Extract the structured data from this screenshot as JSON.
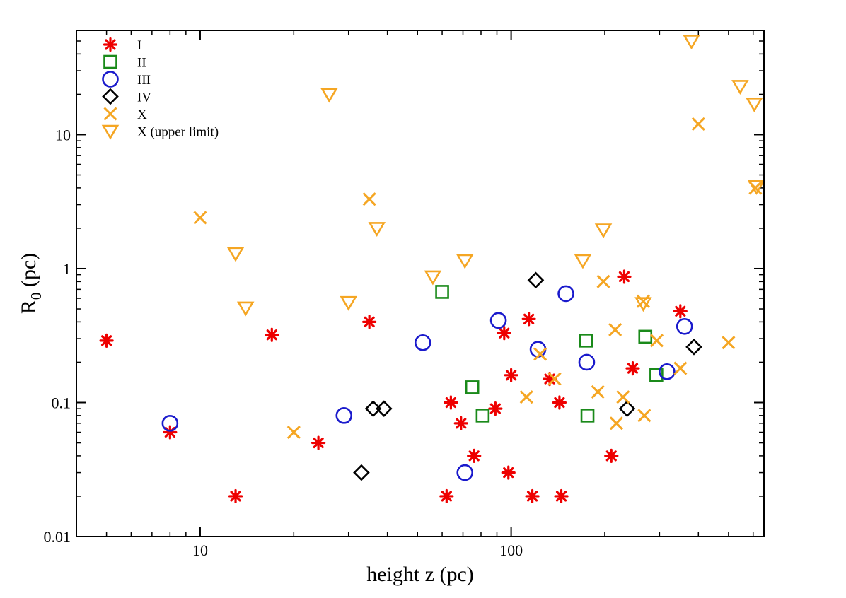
{
  "chart_data": {
    "type": "scatter",
    "xscale": "log",
    "yscale": "log",
    "xlim": [
      4,
      650
    ],
    "ylim": [
      0.01,
      60
    ],
    "xlabel": "height z (pc)",
    "ylabel_main": "R",
    "ylabel_sub": "0",
    "ylabel_unit": " (pc)",
    "legend_position": "top-left",
    "x_ticks": [
      {
        "value": 10,
        "label": "10"
      },
      {
        "value": 100,
        "label": "100"
      }
    ],
    "y_ticks": [
      {
        "value": 0.01,
        "label": "0.01"
      },
      {
        "value": 0.1,
        "label": "0.1"
      },
      {
        "value": 1,
        "label": "1"
      },
      {
        "value": 10,
        "label": "10"
      }
    ],
    "series": [
      {
        "name": "I",
        "marker": "asterisk",
        "color": "#ee0000",
        "points": [
          [
            5,
            0.29
          ],
          [
            8,
            0.06
          ],
          [
            13,
            0.02
          ],
          [
            17,
            0.32
          ],
          [
            24,
            0.05
          ],
          [
            35,
            0.4
          ],
          [
            62,
            0.02
          ],
          [
            64,
            0.1
          ],
          [
            69,
            0.07
          ],
          [
            76,
            0.04
          ],
          [
            89,
            0.09
          ],
          [
            95,
            0.33
          ],
          [
            98,
            0.03
          ],
          [
            100,
            0.16
          ],
          [
            114,
            0.42
          ],
          [
            117,
            0.02
          ],
          [
            133,
            0.15
          ],
          [
            143,
            0.1
          ],
          [
            145,
            0.02
          ],
          [
            210,
            0.04
          ],
          [
            231,
            0.87
          ],
          [
            246,
            0.18
          ],
          [
            350,
            0.48
          ]
        ]
      },
      {
        "name": "II",
        "marker": "square",
        "color": "#1a8a1a",
        "points": [
          [
            60,
            0.67
          ],
          [
            75,
            0.13
          ],
          [
            81,
            0.08
          ],
          [
            174,
            0.29
          ],
          [
            176,
            0.08
          ],
          [
            270,
            0.31
          ],
          [
            293,
            0.16
          ]
        ]
      },
      {
        "name": "III",
        "marker": "circle",
        "color": "#1a1acc",
        "points": [
          [
            8,
            0.07
          ],
          [
            29,
            0.08
          ],
          [
            52,
            0.28
          ],
          [
            71,
            0.03
          ],
          [
            91,
            0.41
          ],
          [
            122,
            0.25
          ],
          [
            150,
            0.65
          ],
          [
            175,
            0.2
          ],
          [
            317,
            0.17
          ],
          [
            361,
            0.37
          ]
        ]
      },
      {
        "name": "IV",
        "marker": "diamond",
        "color": "#000000",
        "points": [
          [
            33,
            0.03
          ],
          [
            36,
            0.09
          ],
          [
            39,
            0.09
          ],
          [
            120,
            0.82
          ],
          [
            236,
            0.09
          ],
          [
            387,
            0.26
          ]
        ]
      },
      {
        "name": "X",
        "marker": "x",
        "color": "#f5a623",
        "points": [
          [
            10,
            2.4
          ],
          [
            20,
            0.06
          ],
          [
            35,
            3.3
          ],
          [
            112,
            0.11
          ],
          [
            124,
            0.23
          ],
          [
            138,
            0.15
          ],
          [
            190,
            0.12
          ],
          [
            198,
            0.8
          ],
          [
            216,
            0.35
          ],
          [
            218,
            0.07
          ],
          [
            229,
            0.11
          ],
          [
            266,
            0.57
          ],
          [
            268,
            0.08
          ],
          [
            294,
            0.29
          ],
          [
            350,
            0.18
          ],
          [
            400,
            12
          ],
          [
            500,
            0.28
          ],
          [
            610,
            4.0
          ]
        ]
      },
      {
        "name": "X (upper limit)",
        "marker": "triangle-down",
        "color": "#f5a623",
        "points": [
          [
            13,
            1.3
          ],
          [
            14,
            0.51
          ],
          [
            26,
            20
          ],
          [
            30,
            0.56
          ],
          [
            37,
            2.0
          ],
          [
            56,
            0.87
          ],
          [
            71,
            1.15
          ],
          [
            170,
            1.15
          ],
          [
            198,
            1.95
          ],
          [
            266,
            0.55
          ],
          [
            380,
            50
          ],
          [
            545,
            23
          ],
          [
            605,
            17
          ],
          [
            615,
            4.1
          ]
        ]
      }
    ]
  }
}
